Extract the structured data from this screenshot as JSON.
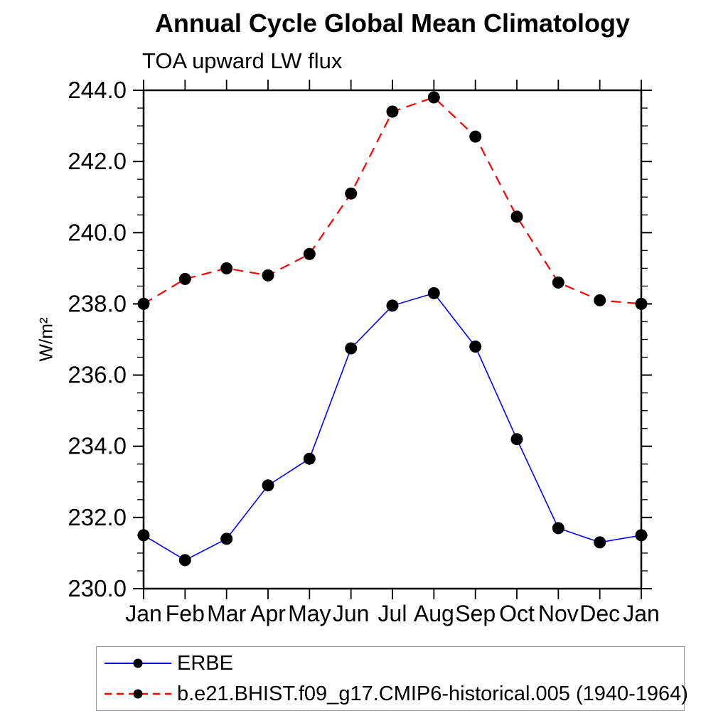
{
  "title": "Annual Cycle Global Mean Climatology",
  "subtitle": "TOA upward LW flux",
  "chart_data": {
    "type": "line",
    "title": "Annual Cycle Global Mean Climatology",
    "subtitle": "TOA upward LW flux",
    "xlabel": "",
    "ylabel": "W/m²",
    "categories": [
      "Jan",
      "Feb",
      "Mar",
      "Apr",
      "May",
      "Jun",
      "Jul",
      "Aug",
      "Sep",
      "Oct",
      "Nov",
      "Dec",
      "Jan"
    ],
    "series": [
      {
        "name": "ERBE",
        "color": "#0000ff",
        "line_style": "solid",
        "marker": "filled-circle",
        "marker_color": "#000000",
        "values": [
          231.5,
          230.8,
          231.4,
          232.9,
          233.65,
          236.75,
          237.95,
          238.3,
          236.8,
          234.2,
          231.7,
          231.3,
          231.5
        ]
      },
      {
        "name": "b.e21.BHIST.f09_g17.CMIP6-historical.005 (1940-1964)",
        "color": "#ff0000",
        "line_style": "dashed",
        "marker": "filled-circle",
        "marker_color": "#000000",
        "values": [
          238.0,
          238.7,
          239.0,
          238.8,
          239.4,
          241.1,
          243.4,
          243.8,
          242.7,
          240.45,
          238.6,
          238.1,
          238.0
        ]
      }
    ],
    "ylim": [
      230.0,
      244.0
    ],
    "y_major_step": 2.0,
    "y_minor_step": 0.5,
    "y_tick_labels": [
      "230.0",
      "232.0",
      "234.0",
      "236.0",
      "238.0",
      "240.0",
      "242.0",
      "244.0"
    ],
    "grid": false,
    "legend_position": "bottom-left",
    "axis_color": "#000000",
    "text_color": "#000000"
  }
}
